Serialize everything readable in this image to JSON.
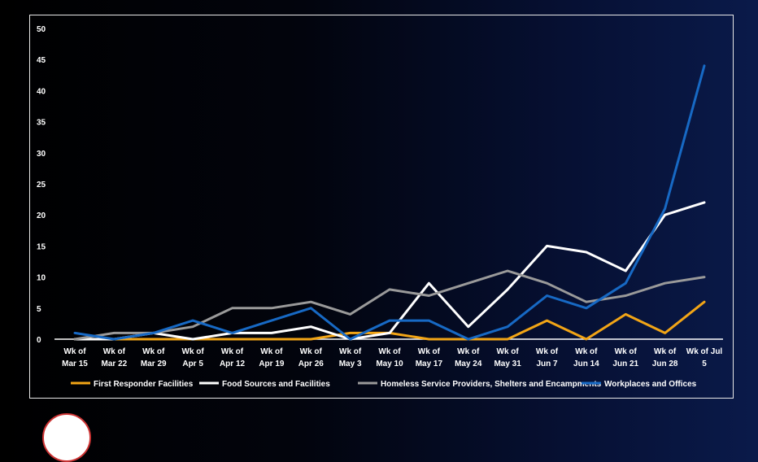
{
  "chart_data": {
    "type": "line",
    "categories": [
      "Wk of Mar 15",
      "Wk of Mar 22",
      "Wk of Mar 29",
      "Wk of Apr 5",
      "Wk of Apr 12",
      "Wk of Apr 19",
      "Wk of Apr 26",
      "Wk of May 3",
      "Wk of May 10",
      "Wk of May 17",
      "Wk of May 24",
      "Wk of May 31",
      "Wk of Jun 7",
      "Wk of Jun 14",
      "Wk of Jun 21",
      "Wk of Jun 28",
      "Wk of Jul 5"
    ],
    "category_lines": [
      [
        "Wk of",
        "Mar 15"
      ],
      [
        "Wk of",
        "Mar 22"
      ],
      [
        "Wk of",
        "Mar 29"
      ],
      [
        "Wk of",
        "Apr 5"
      ],
      [
        "Wk of",
        "Apr 12"
      ],
      [
        "Wk of",
        "Apr 19"
      ],
      [
        "Wk of",
        "Apr 26"
      ],
      [
        "Wk of",
        "May 3"
      ],
      [
        "Wk of",
        "May 10"
      ],
      [
        "Wk of",
        "May 17"
      ],
      [
        "Wk of",
        "May 24"
      ],
      [
        "Wk of",
        "May 31"
      ],
      [
        "Wk of",
        "Jun 7"
      ],
      [
        "Wk of",
        "Jun 14"
      ],
      [
        "Wk of",
        "Jun 21"
      ],
      [
        "Wk of",
        "Jun 28"
      ],
      [
        "Wk of Jul",
        "5"
      ]
    ],
    "yticks": [
      0,
      5,
      10,
      15,
      20,
      25,
      30,
      35,
      40,
      45,
      50
    ],
    "ylim": [
      0,
      50
    ],
    "grid": false,
    "legend_position": "bottom",
    "series": [
      {
        "name": "First Responder Facilities",
        "color": "#f2a516",
        "values": [
          0,
          0,
          0,
          0,
          0,
          0,
          0,
          1,
          1,
          0,
          0,
          0,
          3,
          0,
          4,
          1,
          6
        ]
      },
      {
        "name": "Food Sources and Facilities",
        "color": "#ffffff",
        "values": [
          0,
          0,
          1,
          0,
          1,
          1,
          2,
          0,
          1,
          9,
          2,
          8,
          15,
          14,
          11,
          20,
          22
        ]
      },
      {
        "name": "Homeless Service Providers, Shelters and Encampments",
        "color": "#9a9a9a",
        "values": [
          0,
          1,
          1,
          2,
          5,
          5,
          6,
          4,
          8,
          7,
          9,
          11,
          9,
          6,
          7,
          9,
          10
        ]
      },
      {
        "name": "Workplaces and Offices",
        "color": "#1769c4",
        "values": [
          1,
          0,
          1,
          3,
          1,
          3,
          5,
          0,
          3,
          3,
          0,
          2,
          7,
          5,
          9,
          21,
          44
        ]
      }
    ]
  }
}
